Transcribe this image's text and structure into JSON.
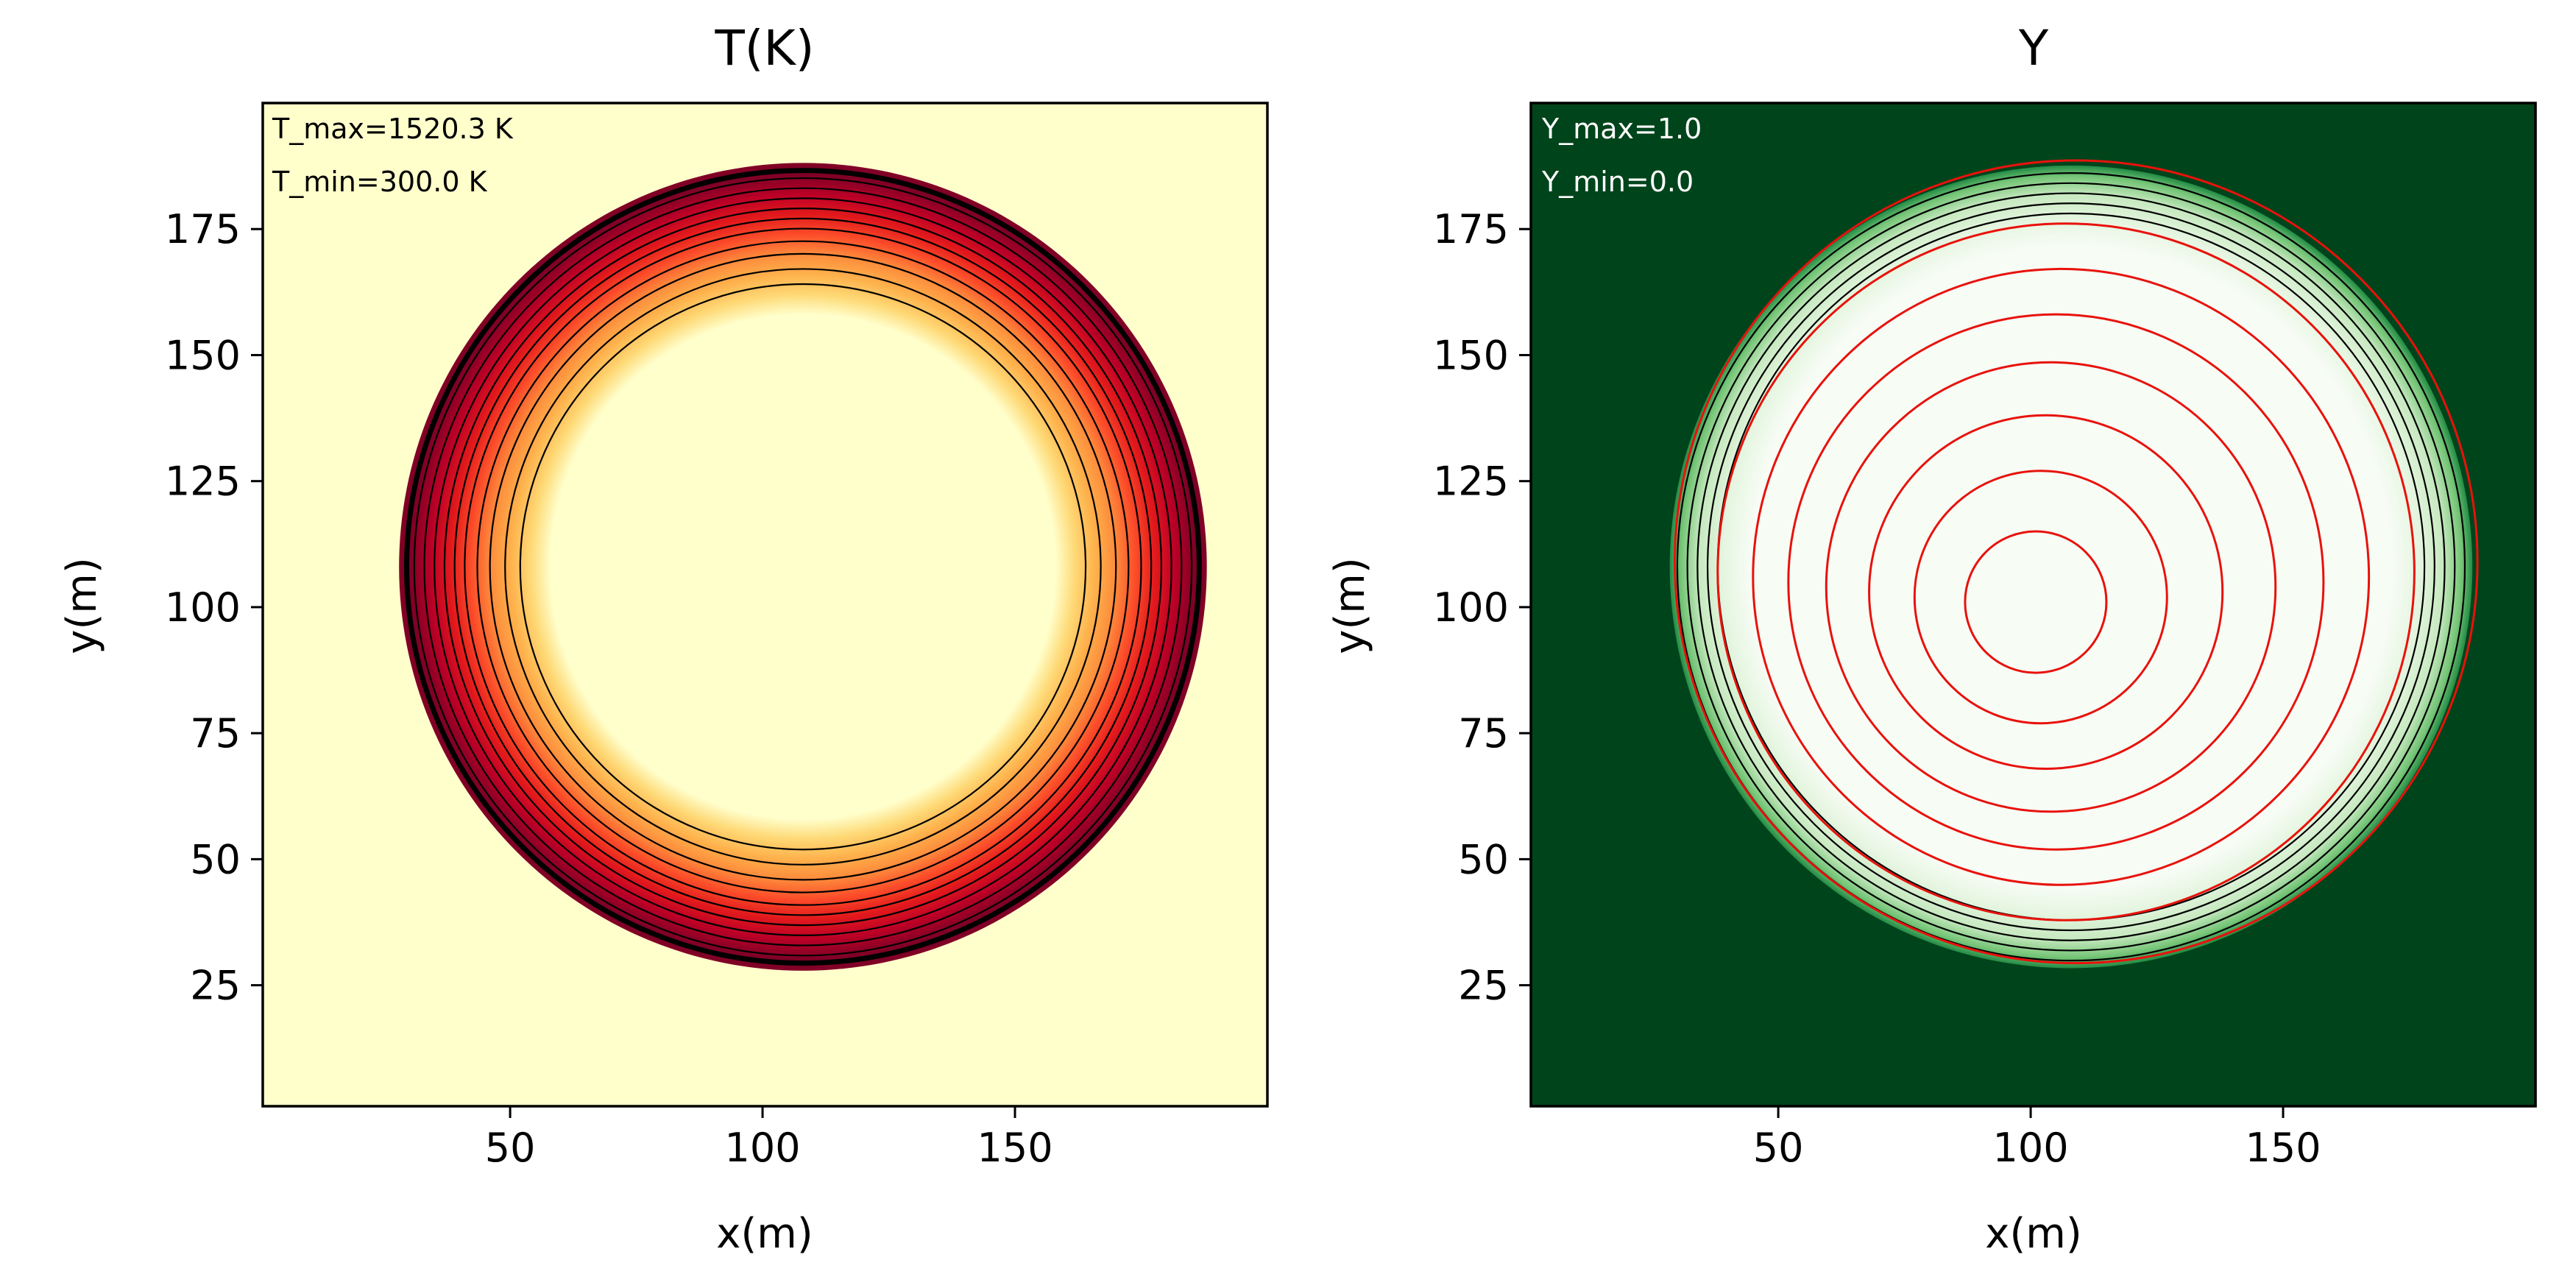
{
  "chart_data": [
    {
      "type": "heatmap",
      "title": "T(K)",
      "xlabel": "x(m)",
      "ylabel": "y(m)",
      "xlim": [
        1,
        200
      ],
      "ylim": [
        1,
        200
      ],
      "xticks": [
        50,
        100,
        150
      ],
      "yticks": [
        25,
        50,
        75,
        100,
        125,
        150,
        175
      ],
      "annotations": [
        "T_max=1520.3 K",
        "T_min=300.0 K"
      ],
      "colormap": [
        "#ffffcc",
        "#fed976",
        "#feb24c",
        "#fd8d3c",
        "#fc4e2a",
        "#e31a1c",
        "#bd0026",
        "#800026"
      ],
      "field": {
        "center": [
          108,
          108
        ],
        "inner_radius": 50,
        "outer_radius": 80,
        "value_range": [
          300.0,
          1520.3
        ]
      },
      "contours": {
        "color": "#000000",
        "radii": [
          56,
          59,
          62,
          64.5,
          67,
          69,
          71,
          73,
          75,
          77
        ]
      },
      "front": {
        "color": "#000000",
        "outer_radius": 80,
        "inner_radius": 77
      }
    },
    {
      "type": "heatmap",
      "title": "Y",
      "xlabel": "x(m)",
      "ylabel": "y(m)",
      "xlim": [
        1,
        200
      ],
      "ylim": [
        1,
        200
      ],
      "xticks": [
        50,
        100,
        150
      ],
      "yticks": [
        25,
        50,
        75,
        100,
        125,
        150,
        175
      ],
      "annotations": [
        "Y_max=1.0",
        "Y_min=0.0"
      ],
      "background": "#00441b",
      "colormap": [
        "#f7fcf5",
        "#c7e9c0",
        "#74c476",
        "#238b45",
        "#00441b"
      ],
      "field": {
        "center": [
          108,
          108
        ],
        "inner_radius": 69,
        "outer_radius": 79.5,
        "value_range": [
          0.0,
          1.0
        ]
      },
      "black_contours": {
        "color": "#000000",
        "radii": [
          70,
          72,
          74,
          76,
          78
        ]
      },
      "red_contours": {
        "color": "#e8120c",
        "circles": [
          {
            "cx": 101,
            "cy": 101,
            "r": 14
          },
          {
            "cx": 102,
            "cy": 102,
            "r": 25
          },
          {
            "cx": 103,
            "cy": 103,
            "r": 35
          },
          {
            "cx": 104,
            "cy": 104,
            "r": 44.5
          },
          {
            "cx": 105,
            "cy": 105,
            "r": 53
          },
          {
            "cx": 106,
            "cy": 106,
            "r": 61
          },
          {
            "cx": 107,
            "cy": 107,
            "r": 69
          },
          {
            "cx": 109,
            "cy": 109,
            "r": 79.5
          }
        ]
      }
    }
  ]
}
